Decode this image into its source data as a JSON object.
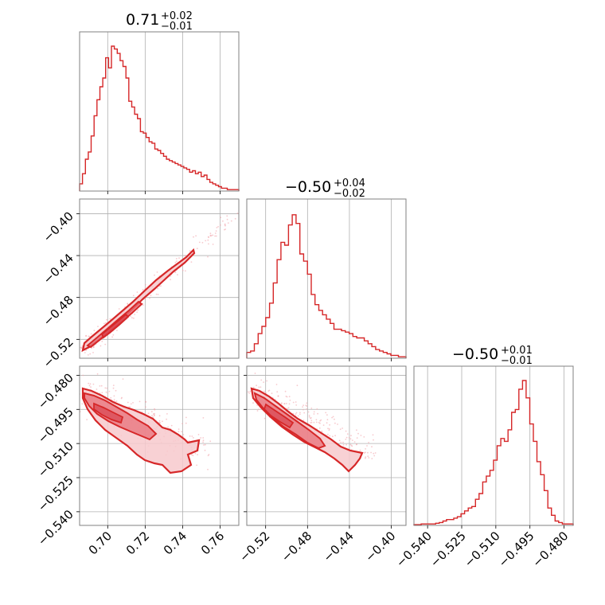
{
  "titles": [
    {
      "value": "0.71",
      "upper": "+0.02",
      "lower": "−0.01"
    },
    {
      "value": "−0.50",
      "upper": "+0.04",
      "lower": "−0.02"
    },
    {
      "value": "−0.50",
      "upper": "+0.01",
      "lower": "−0.01"
    }
  ],
  "colors": {
    "series": "#d62728",
    "fill_dark": "#e8707a",
    "fill_light": "#f7c9cd",
    "grid": "#b0b0b0",
    "frame": "#808080"
  },
  "chart_data": {
    "type": "corner",
    "parameters": [
      {
        "index": 0,
        "range": [
          0.685,
          0.77
        ],
        "ticks": [
          0.7,
          0.72,
          0.74,
          0.76
        ],
        "tick_labels": [
          "0.70",
          "0.72",
          "0.74",
          "0.76"
        ],
        "median": 0.71,
        "plus": 0.02,
        "minus": 0.01
      },
      {
        "index": 1,
        "range": [
          -0.538,
          -0.386
        ],
        "ticks": [
          -0.52,
          -0.48,
          -0.44,
          -0.4
        ],
        "tick_labels": [
          "−0.52",
          "−0.48",
          "−0.44",
          "−0.40"
        ],
        "median": -0.5,
        "plus": 0.04,
        "minus": 0.02
      },
      {
        "index": 2,
        "range": [
          -0.546,
          -0.476
        ],
        "ticks": [
          -0.54,
          -0.525,
          -0.51,
          -0.495,
          -0.48
        ],
        "tick_labels": [
          "−0.540",
          "−0.525",
          "−0.510",
          "−0.495",
          "−0.480"
        ],
        "median": -0.5,
        "plus": 0.01,
        "minus": 0.01
      }
    ],
    "histograms": [
      {
        "param": 0,
        "heights": [
          0.05,
          0.12,
          0.22,
          0.27,
          0.38,
          0.52,
          0.63,
          0.72,
          0.78,
          0.92,
          0.85,
          1.0,
          0.98,
          0.95,
          0.9,
          0.86,
          0.78,
          0.62,
          0.58,
          0.53,
          0.5,
          0.41,
          0.4,
          0.37,
          0.34,
          0.33,
          0.29,
          0.28,
          0.26,
          0.24,
          0.22,
          0.21,
          0.2,
          0.19,
          0.18,
          0.17,
          0.16,
          0.15,
          0.13,
          0.14,
          0.12,
          0.13,
          0.1,
          0.11,
          0.08,
          0.06,
          0.05,
          0.04,
          0.03,
          0.02,
          0.02,
          0.01,
          0.01,
          0.01,
          0.01
        ]
      },
      {
        "param": 1,
        "heights": [
          0.04,
          0.05,
          0.1,
          0.17,
          0.22,
          0.28,
          0.38,
          0.52,
          0.68,
          0.8,
          0.78,
          0.92,
          0.99,
          0.93,
          0.72,
          0.67,
          0.58,
          0.44,
          0.37,
          0.33,
          0.3,
          0.27,
          0.24,
          0.2,
          0.2,
          0.19,
          0.18,
          0.17,
          0.15,
          0.14,
          0.14,
          0.12,
          0.1,
          0.08,
          0.06,
          0.05,
          0.04,
          0.03,
          0.02,
          0.02,
          0.01,
          0.01
        ]
      },
      {
        "param": 2,
        "heights": [
          0.005,
          0.005,
          0.01,
          0.01,
          0.01,
          0.01,
          0.015,
          0.02,
          0.03,
          0.04,
          0.04,
          0.05,
          0.06,
          0.08,
          0.1,
          0.12,
          0.13,
          0.18,
          0.22,
          0.3,
          0.34,
          0.38,
          0.45,
          0.55,
          0.6,
          0.58,
          0.66,
          0.78,
          0.8,
          0.94,
          1.0,
          0.88,
          0.7,
          0.58,
          0.44,
          0.35,
          0.24,
          0.12,
          0.07,
          0.03,
          0.02,
          0.01,
          0.01,
          0.01
        ]
      }
    ]
  }
}
